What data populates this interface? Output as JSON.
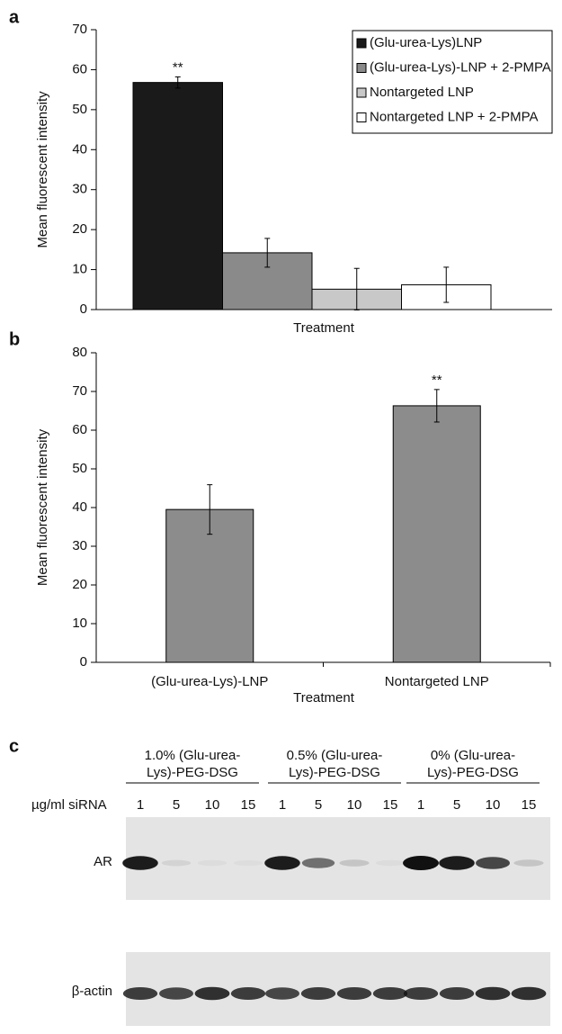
{
  "chart_data": [
    {
      "type": "bar",
      "label": "a",
      "ylabel": "Mean fluorescent intensity",
      "xlabel": "Treatment",
      "categories": [
        null
      ],
      "series": [
        {
          "name": "(Glu-urea-Lys)LNP",
          "color": "#1a1a1a",
          "values": [
            56.8
          ],
          "errors": [
            1.4
          ],
          "significance": [
            "**"
          ]
        },
        {
          "name": "(Glu-urea-Lys)-LNP + 2-PMPA",
          "color": "#8a8a8a",
          "values": [
            14.2
          ],
          "errors": [
            3.6
          ],
          "significance": [
            null
          ]
        },
        {
          "name": "Nontargeted LNP",
          "color": "#c8c8c8",
          "values": [
            5.1
          ],
          "errors": [
            5.2
          ],
          "significance": [
            null
          ]
        },
        {
          "name": "Nontargeted LNP + 2-PMPA",
          "color": "#ffffff",
          "values": [
            6.2
          ],
          "errors": [
            4.4
          ],
          "significance": [
            null
          ]
        }
      ],
      "ylim": [
        0,
        70
      ],
      "yticks": [
        0,
        10,
        20,
        30,
        40,
        50,
        60,
        70
      ],
      "legend": "upper right"
    },
    {
      "type": "bar",
      "label": "b",
      "ylabel": "Mean fluorescent intensity",
      "xlabel": "Treatment",
      "categories": [
        "(Glu-urea-Lys)-LNP",
        "Nontargeted LNP"
      ],
      "values": [
        39.5,
        66.3
      ],
      "errors": [
        6.4,
        4.2
      ],
      "significance": [
        null,
        "**"
      ],
      "color": "#8c8c8c",
      "ylim": [
        0,
        80
      ],
      "yticks": [
        0,
        10,
        20,
        30,
        40,
        50,
        60,
        70,
        80
      ]
    }
  ],
  "blot": {
    "label": "c",
    "groups": [
      {
        "lines": [
          "1.0% (Glu-urea-",
          "Lys)-PEG-DSG"
        ],
        "lanes": [
          "1",
          "5",
          "10",
          "15"
        ]
      },
      {
        "lines": [
          "0.5% (Glu-urea-",
          "Lys)-PEG-DSG"
        ],
        "lanes": [
          "1",
          "5",
          "10",
          "15"
        ]
      },
      {
        "lines": [
          "0% (Glu-urea-",
          "Lys)-PEG-DSG"
        ],
        "lanes": [
          "1",
          "5",
          "10",
          "15"
        ]
      }
    ],
    "row_label": "µg/ml siRNA",
    "bands": [
      "AR",
      "β-actin"
    ]
  }
}
